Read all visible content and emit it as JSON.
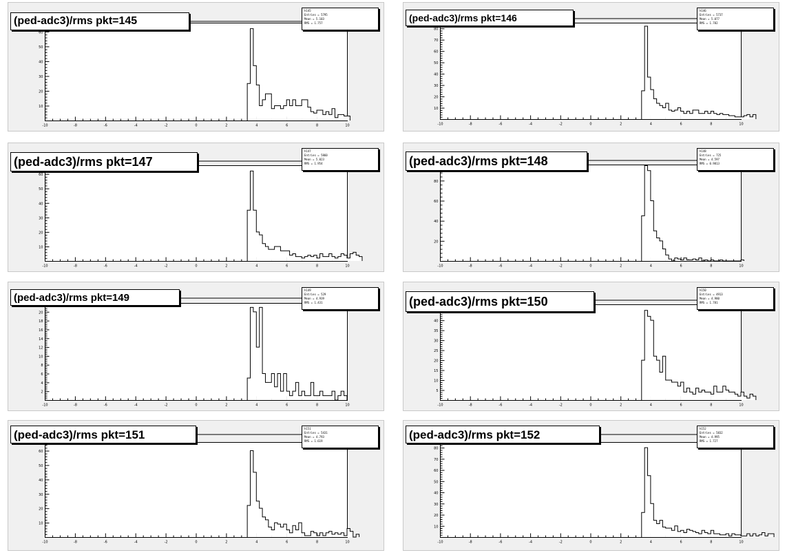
{
  "window": {
    "background": "#ffffff",
    "pad_color": "#f0f0f0"
  },
  "chart_data": [
    {
      "type": "histogram",
      "title": "(ped-adc3)/rms pkt=145",
      "stats": {
        "name": "h145",
        "entries": "Entries = 5795",
        "mean": "Mean = 5.103",
        "rms": "RMS = 1.757"
      },
      "xlim": [
        -10,
        10
      ],
      "ylim": [
        0,
        66
      ],
      "bin_start": 3.4,
      "bin_width": 0.2,
      "y_ticks": [
        10,
        20,
        30,
        40,
        50,
        60
      ],
      "values": [
        25,
        62,
        37,
        24,
        10,
        14,
        18,
        18,
        8,
        10,
        10,
        8,
        10,
        14,
        10,
        14,
        10,
        10,
        14,
        14,
        9,
        6,
        5,
        7,
        7,
        4,
        6,
        4,
        8,
        2,
        4,
        4,
        3,
        3
      ]
    },
    {
      "type": "histogram",
      "title": "(ped-adc3)/rms pkt=146",
      "stats": {
        "name": "h146",
        "entries": "Entries = 5737",
        "mean": "Mean = 5.077",
        "rms": "RMS = 1.782"
      },
      "xlim": [
        -10,
        10
      ],
      "ylim": [
        0,
        85
      ],
      "bin_start": 3.4,
      "bin_width": 0.2,
      "y_ticks": [
        10,
        20,
        30,
        40,
        50,
        60,
        70,
        80
      ],
      "values": [
        25,
        82,
        37,
        26,
        18,
        14,
        12,
        10,
        14,
        8,
        7,
        8,
        10,
        7,
        5,
        7,
        5,
        8,
        8,
        5,
        5,
        7,
        5,
        7,
        5,
        4,
        5,
        4,
        4,
        3,
        3,
        2,
        2,
        2,
        3,
        4,
        2,
        4
      ]
    },
    {
      "type": "histogram",
      "title": "(ped-adc3)/rms pkt=147",
      "stats": {
        "name": "h147",
        "entries": "Entries = 5860",
        "mean": "Mean = 5.023",
        "rms": "RMS = 1.954"
      },
      "xlim": [
        -10,
        10
      ],
      "ylim": [
        0,
        66
      ],
      "bin_start": 3.4,
      "bin_width": 0.2,
      "y_ticks": [
        10,
        20,
        30,
        40,
        50,
        60
      ],
      "values": [
        35,
        62,
        35,
        20,
        18,
        12,
        10,
        8,
        8,
        10,
        10,
        7,
        7,
        7,
        4,
        5,
        3,
        3,
        2,
        3,
        4,
        3,
        4,
        2,
        5,
        3,
        3,
        5,
        3,
        2,
        3,
        5,
        4,
        2,
        5,
        6,
        4,
        3
      ]
    },
    {
      "type": "histogram",
      "title": "(ped-adc3)/rms pkt=148",
      "stats": {
        "name": "h148",
        "entries": "Entries = 725",
        "mean": "Mean = 4.597",
        "rms": "RMS = 0.9813"
      },
      "xlim": [
        -10,
        10
      ],
      "ylim": [
        0,
        96
      ],
      "bin_start": 3.4,
      "bin_width": 0.2,
      "y_ticks": [
        20,
        40,
        60,
        80
      ],
      "values": [
        45,
        95,
        90,
        60,
        30,
        23,
        20,
        12,
        6,
        2,
        0,
        3,
        2,
        1,
        3,
        1,
        1,
        2,
        1,
        3,
        0,
        1,
        0,
        1,
        0,
        0,
        1,
        0,
        0,
        0,
        0,
        0,
        0,
        1
      ]
    },
    {
      "type": "histogram",
      "title": "(ped-adc3)/rms pkt=149",
      "stats": {
        "name": "h149",
        "entries": "Entries = 529",
        "mean": "Mean = 4.939",
        "rms": "RMS = 1.431"
      },
      "xlim": [
        -10,
        10
      ],
      "ylim": [
        0,
        22
      ],
      "bin_start": 3.4,
      "bin_width": 0.2,
      "y_ticks": [
        2,
        4,
        6,
        8,
        10,
        12,
        14,
        16,
        18,
        20
      ],
      "values": [
        5,
        21,
        20,
        12,
        21,
        6,
        4,
        4,
        6,
        3,
        6,
        2,
        6,
        2,
        1,
        2,
        4,
        1,
        2,
        1,
        1,
        4,
        1,
        1,
        2,
        1,
        1,
        1,
        2,
        0,
        1,
        2,
        1
      ]
    },
    {
      "type": "histogram",
      "title": "(ped-adc3)/rms pkt=150",
      "stats": {
        "name": "h150",
        "entries": "Entries = 4913",
        "mean": "Mean = 4.980",
        "rms": "RMS = 1.781"
      },
      "xlim": [
        -10,
        10
      ],
      "ylim": [
        0,
        48
      ],
      "bin_start": 3.4,
      "bin_width": 0.2,
      "y_ticks": [
        5,
        10,
        15,
        20,
        25,
        30,
        35,
        40,
        45
      ],
      "values": [
        20,
        45,
        42,
        40,
        22,
        20,
        14,
        22,
        10,
        10,
        9,
        9,
        7,
        9,
        4,
        6,
        4,
        3,
        6,
        4,
        5,
        4,
        4,
        3,
        7,
        4,
        4,
        7,
        5,
        4,
        4,
        3,
        2,
        4,
        2,
        1,
        3,
        2
      ]
    },
    {
      "type": "histogram",
      "title": "(ped-adc3)/rms pkt=151",
      "stats": {
        "name": "h151",
        "entries": "Entries = 5431",
        "mean": "Mean = 4.793",
        "rms": "RMS = 1.619"
      },
      "xlim": [
        -10,
        10
      ],
      "ylim": [
        0,
        66
      ],
      "bin_start": 3.4,
      "bin_width": 0.2,
      "y_ticks": [
        10,
        20,
        30,
        40,
        50,
        60
      ],
      "values": [
        22,
        60,
        45,
        25,
        20,
        14,
        12,
        7,
        5,
        10,
        9,
        7,
        9,
        5,
        3,
        8,
        5,
        10,
        3,
        1,
        1,
        4,
        3,
        1,
        3,
        1,
        3,
        4,
        2,
        3,
        2,
        3,
        1,
        6,
        4,
        0,
        2
      ]
    },
    {
      "type": "histogram",
      "title": "(ped-adc3)/rms pkt=152",
      "stats": {
        "name": "h152",
        "entries": "Entries = 5832",
        "mean": "Mean = 4.995",
        "rms": "RMS = 1.727"
      },
      "xlim": [
        -10,
        10
      ],
      "ylim": [
        0,
        85
      ],
      "bin_start": 3.4,
      "bin_width": 0.2,
      "y_ticks": [
        10,
        20,
        30,
        40,
        50,
        60,
        70,
        80
      ],
      "values": [
        22,
        80,
        55,
        30,
        15,
        12,
        15,
        9,
        8,
        8,
        6,
        10,
        5,
        6,
        4,
        7,
        6,
        5,
        4,
        3,
        6,
        4,
        3,
        6,
        3,
        3,
        2,
        2,
        3,
        1,
        3,
        2,
        2,
        1,
        1,
        3,
        1,
        3,
        1,
        2,
        4,
        1,
        3,
        3
      ]
    }
  ]
}
